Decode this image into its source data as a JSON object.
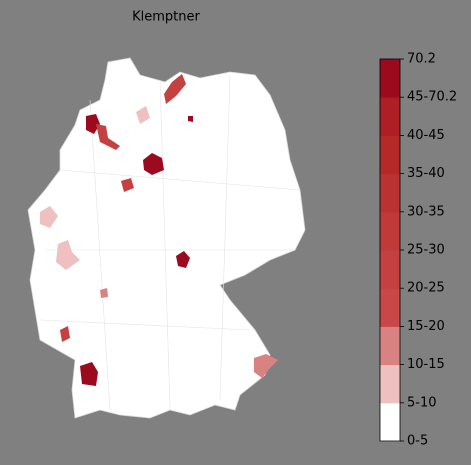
{
  "title": "Klemptner",
  "legend": {
    "labels": [
      "0-5",
      "5-10",
      "10-15",
      "15-20",
      "20-25",
      "25-30",
      "30-35",
      "35-40",
      "40-45",
      "45-70.2",
      "70.2"
    ],
    "colors": [
      "#ffffff",
      "#eec0c0",
      "#d98282",
      "#c94747",
      "#c54040",
      "#c03a3a",
      "#bb3232",
      "#b52929",
      "#ad1f24",
      "#9c0a1e"
    ]
  }
}
